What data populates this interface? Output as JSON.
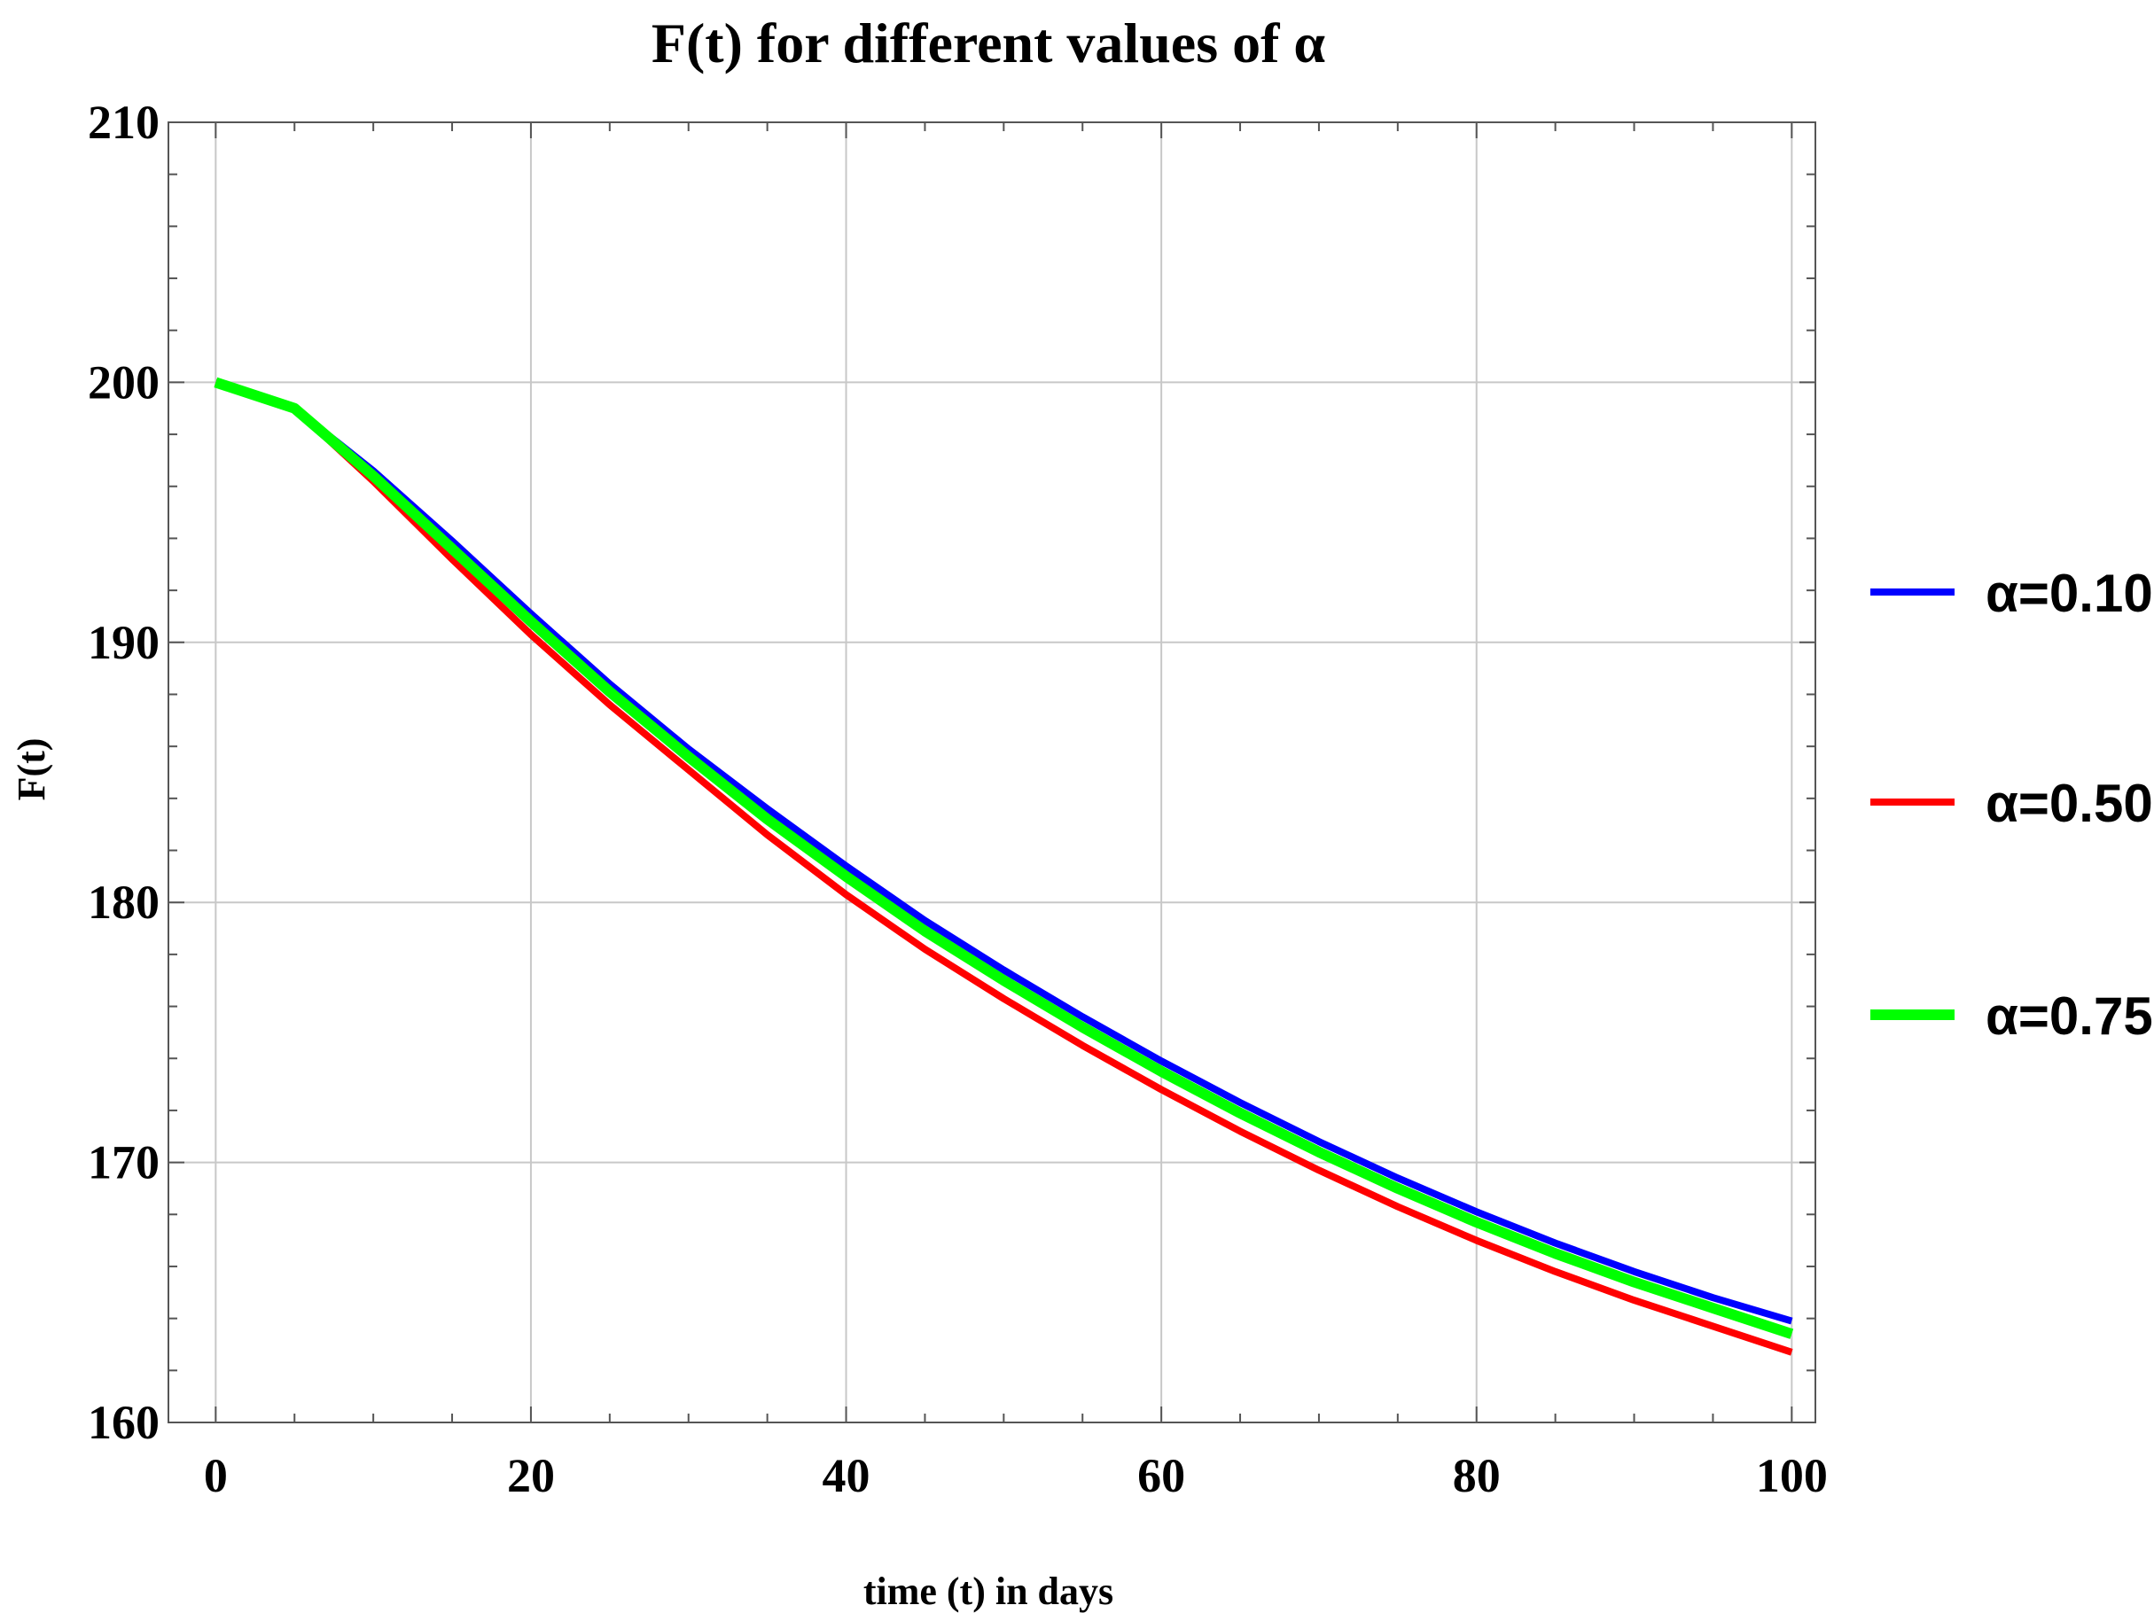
{
  "chart_data": {
    "type": "line",
    "title": "F(t) for different values of α",
    "xlabel": "time (t) in days",
    "ylabel": "F(t)",
    "xlim": [
      -3,
      101.5
    ],
    "ylim": [
      160,
      210
    ],
    "xticks": [
      0,
      20,
      40,
      60,
      80,
      100
    ],
    "yticks": [
      160,
      170,
      180,
      190,
      200,
      210
    ],
    "grid": true,
    "legend_position": "right",
    "x": [
      0,
      5,
      10,
      15,
      20,
      25,
      30,
      35,
      40,
      45,
      50,
      55,
      60,
      65,
      70,
      75,
      80,
      85,
      90,
      95,
      100
    ],
    "series": [
      {
        "name": "α=0.10",
        "color": "#0000ff",
        "values": [
          200.0,
          199.0,
          196.6,
          193.9,
          191.1,
          188.4,
          185.9,
          183.6,
          181.4,
          179.3,
          177.4,
          175.6,
          173.9,
          172.3,
          170.8,
          169.4,
          168.1,
          166.9,
          165.8,
          164.8,
          163.9
        ]
      },
      {
        "name": "α=0.50",
        "color": "#ff0000",
        "values": [
          200.0,
          199.0,
          196.2,
          193.2,
          190.3,
          187.6,
          185.1,
          182.6,
          180.3,
          178.2,
          176.3,
          174.5,
          172.8,
          171.2,
          169.7,
          168.3,
          167.0,
          165.8,
          164.7,
          163.7,
          162.7
        ]
      },
      {
        "name": "α=0.75",
        "color": "#00ff00",
        "values": [
          200.0,
          199.0,
          196.4,
          193.6,
          190.8,
          188.1,
          185.6,
          183.2,
          181.0,
          178.9,
          177.0,
          175.2,
          173.5,
          171.9,
          170.4,
          169.0,
          167.7,
          166.5,
          165.4,
          164.4,
          163.4
        ]
      }
    ]
  }
}
